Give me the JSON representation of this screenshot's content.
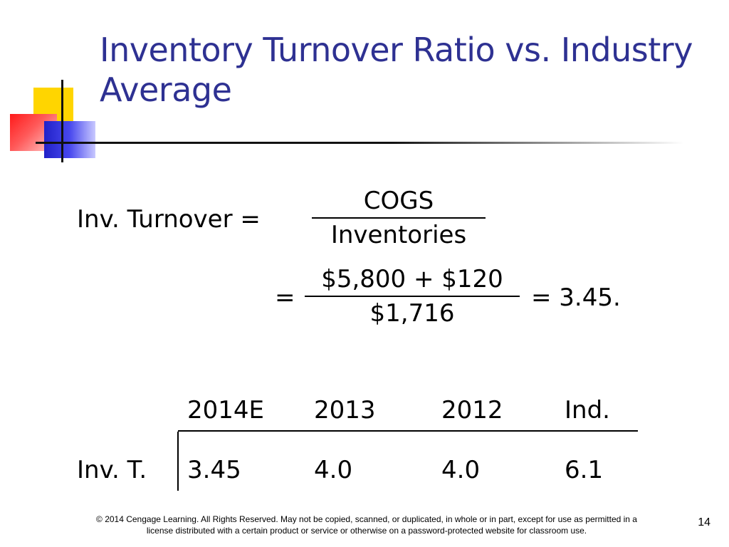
{
  "slide": {
    "title": "Inventory Turnover Ratio vs. Industry Average",
    "formula": {
      "lhs": "Inv. Turnover =",
      "numerator": "COGS",
      "denominator": "Inventories"
    },
    "calc": {
      "equals": "=",
      "numerator": "$5,800 + $120",
      "denominator": "$1,716",
      "result": "=  3.45."
    },
    "table": {
      "headers": [
        "2014E",
        "2013",
        "2012",
        "Ind."
      ],
      "row_label": "Inv. T.",
      "values": [
        "3.45",
        "4.0",
        "4.0",
        "6.1"
      ]
    },
    "footer": "© 2014 Cengage Learning. All Rights Reserved. May not be copied, scanned, or duplicated, in whole or in part, except for use as permitted in a license distributed with a certain product or service or otherwise on a password-protected website for classroom use.",
    "page_number": "14"
  },
  "colors": {
    "title": "#2e3192",
    "accent_yellow": "#ffd500",
    "accent_red": "#ff1a1a",
    "accent_blue": "#2121c8"
  }
}
